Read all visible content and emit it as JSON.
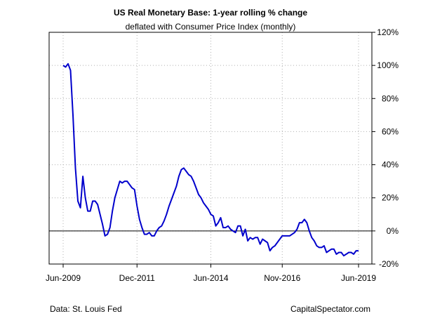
{
  "chart_data": {
    "type": "line",
    "title": "US Real Monetary Base: 1-year rolling % change",
    "subtitle": "deflated with Consumer Price Index (monthly)",
    "xlabel": "",
    "ylabel": "",
    "x_ticks": [
      "Jun-2009",
      "Dec-2011",
      "Jun-2014",
      "Nov-2016",
      "Jun-2019"
    ],
    "y_ticks": [
      "120%",
      "100%",
      "80%",
      "60%",
      "40%",
      "20%",
      "0%",
      "-20%"
    ],
    "ylim": [
      -20,
      120
    ],
    "xlim": [
      "2009-06",
      "2019-06"
    ],
    "grid": true,
    "line_color": "#0000cc",
    "zero_line": true,
    "series": [
      {
        "x": [
          "2009-06",
          "2009-07",
          "2009-08",
          "2009-09",
          "2009-10",
          "2009-11",
          "2009-12",
          "2010-01",
          "2010-02",
          "2010-03",
          "2010-04",
          "2010-05",
          "2010-06",
          "2010-07",
          "2010-08",
          "2010-09",
          "2010-10",
          "2010-11",
          "2010-12",
          "2011-01",
          "2011-02",
          "2011-03",
          "2011-04",
          "2011-05",
          "2011-06",
          "2011-07",
          "2011-08",
          "2011-09",
          "2011-10",
          "2011-11",
          "2011-12",
          "2012-01",
          "2012-02",
          "2012-03",
          "2012-04",
          "2012-05",
          "2012-06",
          "2012-07",
          "2012-08",
          "2012-09",
          "2012-10",
          "2012-11",
          "2012-12",
          "2013-01",
          "2013-02",
          "2013-03",
          "2013-04",
          "2013-05",
          "2013-06",
          "2013-07",
          "2013-08",
          "2013-09",
          "2013-10",
          "2013-11",
          "2013-12",
          "2014-01",
          "2014-02",
          "2014-03",
          "2014-04",
          "2014-05",
          "2014-06",
          "2014-07",
          "2014-08",
          "2014-09",
          "2014-10",
          "2014-11",
          "2014-12",
          "2015-01",
          "2015-02",
          "2015-03",
          "2015-04",
          "2015-05",
          "2015-06",
          "2015-07",
          "2015-08",
          "2015-09",
          "2015-10",
          "2015-11",
          "2015-12",
          "2016-01",
          "2016-02",
          "2016-03",
          "2016-04",
          "2016-05",
          "2016-06",
          "2016-07",
          "2016-08",
          "2016-09",
          "2016-10",
          "2016-11",
          "2016-12",
          "2017-01",
          "2017-02",
          "2017-03",
          "2017-04",
          "2017-05",
          "2017-06",
          "2017-07",
          "2017-08",
          "2017-09",
          "2017-10",
          "2017-11",
          "2017-12",
          "2018-01",
          "2018-02",
          "2018-03",
          "2018-04",
          "2018-05",
          "2018-06",
          "2018-07",
          "2018-08",
          "2018-09",
          "2018-10",
          "2018-11",
          "2018-12",
          "2019-01",
          "2019-02",
          "2019-03",
          "2019-04",
          "2019-05",
          "2019-06"
        ],
        "values": [
          100,
          99,
          101,
          97,
          70,
          38,
          18,
          14,
          33,
          20,
          12,
          12,
          18,
          18,
          16,
          10,
          4,
          -3,
          -2,
          2,
          12,
          20,
          25,
          30,
          29,
          30,
          30,
          28,
          26,
          25,
          15,
          7,
          2,
          -2,
          -2,
          -1,
          -3,
          -3,
          0,
          2,
          3,
          6,
          10,
          15,
          19,
          23,
          27,
          33,
          37,
          38,
          36,
          34,
          33,
          30,
          26,
          22,
          20,
          17,
          15,
          13,
          10,
          9,
          3,
          5,
          8,
          2,
          2,
          3,
          1,
          0,
          -1,
          3,
          3,
          -3,
          1,
          -6,
          -4,
          -5,
          -4,
          -4,
          -8,
          -5,
          -6,
          -7,
          -12,
          -10,
          -9,
          -7,
          -5,
          -3,
          -3,
          -3,
          -3,
          -2,
          -1,
          1,
          5,
          5,
          7,
          5,
          0,
          -4,
          -6,
          -9,
          -10,
          -10,
          -9,
          -13,
          -12,
          -11,
          -11,
          -14,
          -13,
          -13,
          -15,
          -14,
          -13,
          -13,
          -14,
          -12,
          -12
        ]
      }
    ]
  },
  "footer": {
    "source": "Data: St. Louis Fed",
    "brand": "CapitalSpectator.com"
  }
}
